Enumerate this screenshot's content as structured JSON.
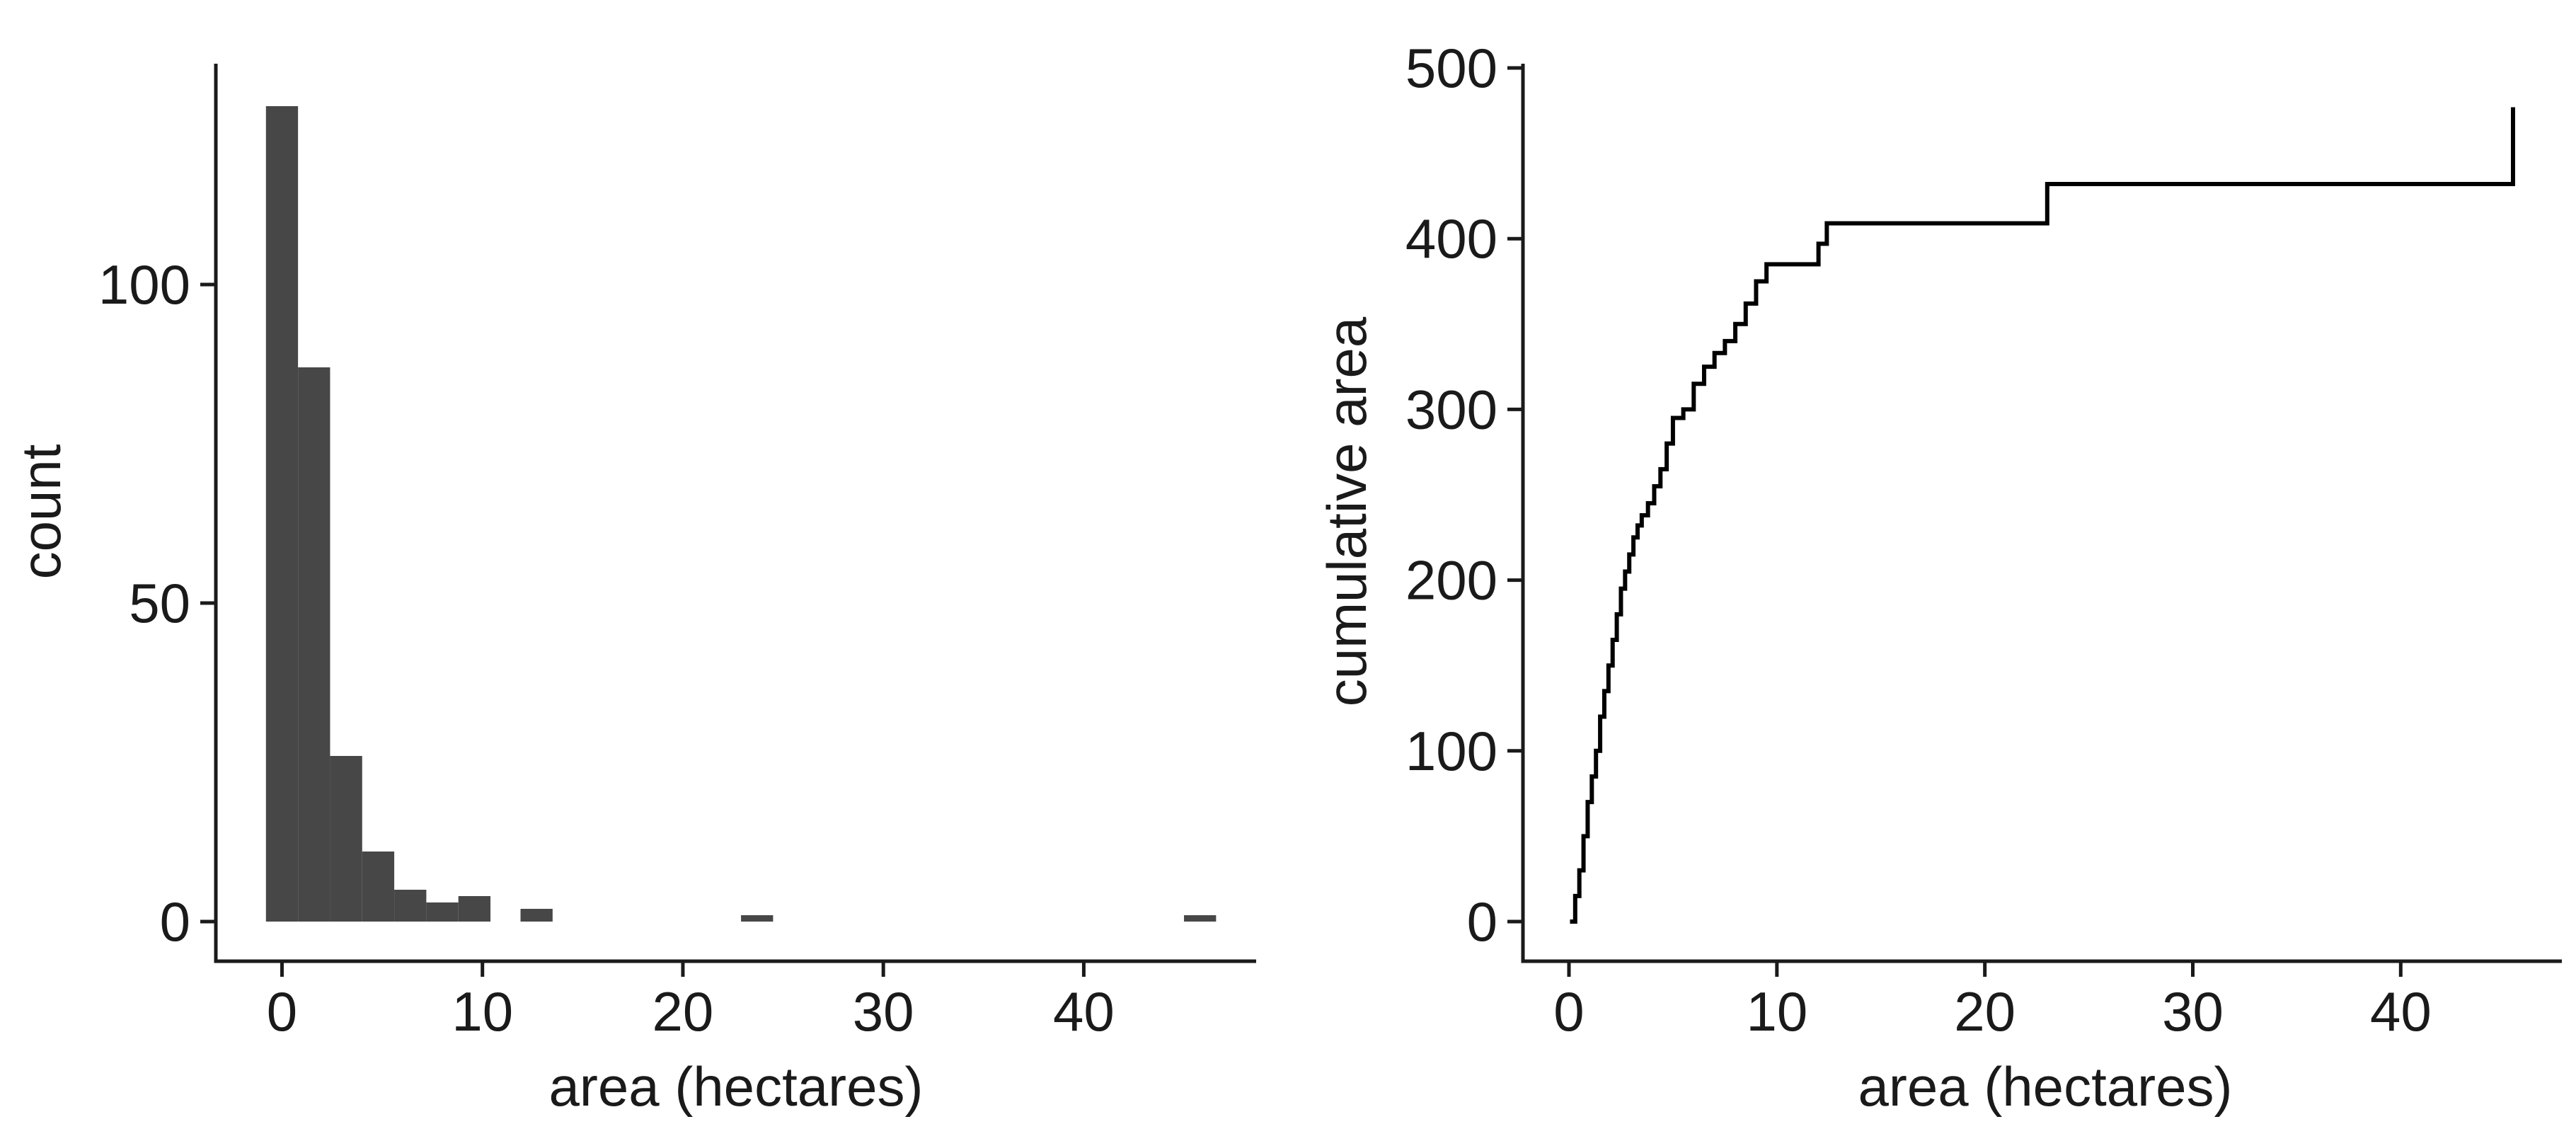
{
  "chart_data": [
    {
      "type": "bar",
      "subtype": "histogram",
      "xlabel": "area (hectares)",
      "ylabel": "count",
      "xlim": [
        -3.3,
        48.6
      ],
      "ylim": [
        0,
        135
      ],
      "x_ticks": [
        0,
        10,
        20,
        30,
        40
      ],
      "y_ticks": [
        0,
        50,
        100
      ],
      "bar_color": "#474747",
      "bin_width": 1.6,
      "bins": [
        {
          "x0": -0.8,
          "x1": 0.8,
          "count": 128
        },
        {
          "x0": 0.8,
          "x1": 2.4,
          "count": 87
        },
        {
          "x0": 2.4,
          "x1": 4.0,
          "count": 26
        },
        {
          "x0": 4.0,
          "x1": 5.6,
          "count": 11
        },
        {
          "x0": 5.6,
          "x1": 7.2,
          "count": 5
        },
        {
          "x0": 7.2,
          "x1": 8.8,
          "count": 3
        },
        {
          "x0": 8.8,
          "x1": 10.4,
          "count": 4
        },
        {
          "x0": 11.9,
          "x1": 13.5,
          "count": 2
        },
        {
          "x0": 22.9,
          "x1": 24.5,
          "count": 1
        },
        {
          "x0": 45.0,
          "x1": 46.6,
          "count": 1
        }
      ],
      "grid": false
    },
    {
      "type": "line",
      "subtype": "step",
      "xlabel": "area (hectares)",
      "ylabel": "cumulative area",
      "xlim": [
        -2.3,
        47.7
      ],
      "ylim": [
        -23,
        500
      ],
      "x_ticks": [
        0,
        10,
        20,
        30,
        40
      ],
      "y_ticks": [
        0,
        100,
        200,
        300,
        400,
        500
      ],
      "line_color": "#000000",
      "grid": false,
      "series": [
        {
          "x": [
            0.05,
            0.3,
            0.5,
            0.7,
            0.9,
            1.1,
            1.3,
            1.5,
            1.7,
            1.9,
            2.1,
            2.3,
            2.5,
            2.7,
            2.9,
            3.1,
            3.3,
            3.5,
            3.8,
            4.1,
            4.4,
            4.7,
            5.0,
            5.5,
            6.0,
            6.5,
            7.0,
            7.5,
            8.0,
            8.5,
            9.0,
            9.5,
            12.0,
            12.4,
            23.0,
            45.4
          ],
          "y": [
            0,
            15,
            30,
            50,
            70,
            85,
            100,
            120,
            135,
            150,
            165,
            180,
            195,
            205,
            215,
            225,
            232,
            238,
            245,
            255,
            265,
            280,
            295,
            300,
            315,
            325,
            333,
            340,
            350,
            362,
            375,
            385,
            397,
            409,
            432,
            477
          ]
        }
      ]
    }
  ]
}
